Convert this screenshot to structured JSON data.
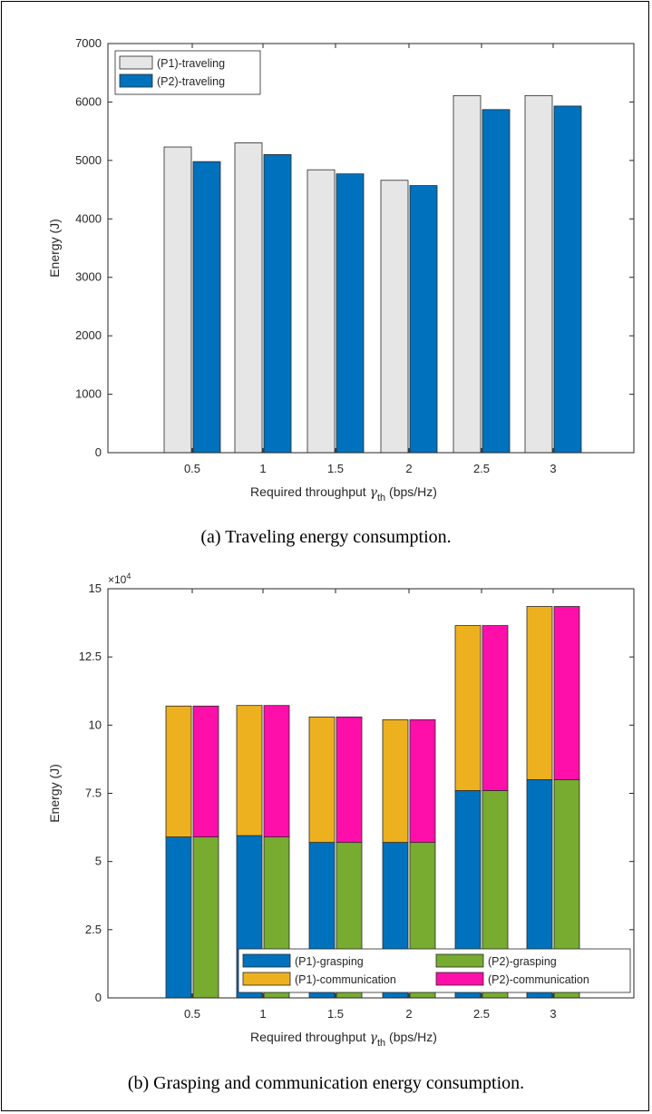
{
  "captions": {
    "a": "(a) Traveling energy consumption.",
    "b": "(b) Grasping and communication energy consumption."
  },
  "chart_data": [
    {
      "type": "bar",
      "title": "",
      "xlabel_main": "Required throughput ",
      "xlabel_symbol": "γ",
      "xlabel_sub": "th",
      "xlabel_unit": " (bps/Hz)",
      "ylabel": "Energy (J)",
      "categories": [
        "0.5",
        "1",
        "1.5",
        "2",
        "2.5",
        "3"
      ],
      "ylim": [
        0,
        7000
      ],
      "yticks": [
        0,
        1000,
        2000,
        3000,
        4000,
        5000,
        6000,
        7000
      ],
      "ytick_labels": [
        "0",
        "1000",
        "2000",
        "3000",
        "4000",
        "5000",
        "6000",
        "7000"
      ],
      "legend_position": "top-left",
      "series": [
        {
          "name": "(P1)-traveling",
          "color": "#e6e6e6",
          "values": [
            5230,
            5300,
            4840,
            4660,
            6110,
            6110
          ]
        },
        {
          "name": "(P2)-traveling",
          "color": "#0072bd",
          "values": [
            4980,
            5100,
            4770,
            4570,
            5870,
            5930
          ]
        }
      ]
    },
    {
      "type": "bar",
      "stacked": true,
      "title": "",
      "xlabel_main": "Required throughput ",
      "xlabel_symbol": "γ",
      "xlabel_sub": "th",
      "xlabel_unit": " (bps/Hz)",
      "ylabel": "Energy (J)",
      "exponent_label": "×10",
      "exponent_power": "4",
      "categories": [
        "0.5",
        "1",
        "1.5",
        "2",
        "2.5",
        "3"
      ],
      "ylim": [
        0,
        15
      ],
      "yticks": [
        0,
        2.5,
        5,
        7.5,
        10,
        12.5,
        15
      ],
      "ytick_labels": [
        "0",
        "2.5",
        "5",
        "7.5",
        "10",
        "12.5",
        "15"
      ],
      "legend_position": "bottom-right",
      "series": [
        {
          "name": "(P1)-grasping",
          "color": "#0072bd",
          "group": "P1",
          "values": [
            5.9,
            5.95,
            5.7,
            5.7,
            7.6,
            8.0
          ]
        },
        {
          "name": "(P1)-communication",
          "color": "#edb120",
          "group": "P1",
          "values": [
            4.8,
            4.77,
            4.6,
            4.5,
            6.05,
            6.35
          ]
        },
        {
          "name": "(P2)-grasping",
          "color": "#77ac30",
          "group": "P2",
          "values": [
            5.9,
            5.9,
            5.7,
            5.7,
            7.6,
            8.0
          ]
        },
        {
          "name": "(P2)-communication",
          "color": "#ff0faa",
          "group": "P2",
          "values": [
            4.8,
            4.82,
            4.6,
            4.5,
            6.05,
            6.35
          ]
        }
      ]
    }
  ]
}
